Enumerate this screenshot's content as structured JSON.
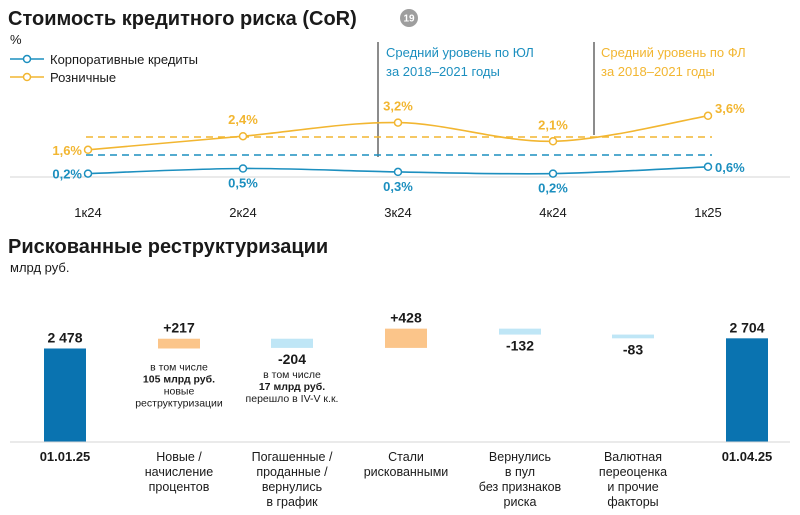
{
  "colors": {
    "blue": "#1c8fbf",
    "yellow": "#f2b631",
    "dark_blue": "#0a73b0",
    "light_blue": "#bfe6f6",
    "light_orange": "#fbc58a",
    "badge_gray": "#9e9e9e"
  },
  "chart_data": [
    {
      "type": "line",
      "title": "Стоимость кредитного риска (CoR)",
      "badge": "19",
      "unit": "%",
      "categories": [
        "1к24",
        "2к24",
        "3к24",
        "4к24",
        "1к25"
      ],
      "series": [
        {
          "name": "Корпоративные кредиты",
          "color": "#1c8fbf",
          "values": [
            0.2,
            0.5,
            0.3,
            0.2,
            0.6
          ],
          "labels": [
            "0,2%",
            "0,5%",
            "0,3%",
            "0,2%",
            "0,6%"
          ]
        },
        {
          "name": "Розничные",
          "color": "#f2b631",
          "values": [
            1.6,
            2.4,
            3.2,
            2.1,
            3.6
          ],
          "labels": [
            "1,6%",
            "2,4%",
            "3,2%",
            "2,1%",
            "3,6%"
          ]
        }
      ],
      "reference_lines": [
        {
          "text_1": "Средний уровень по ЮЛ",
          "text_2": "за 2018–2021 годы",
          "color": "#1c8fbf"
        },
        {
          "text_1": "Средний уровень по ФЛ",
          "text_2": "за 2018–2021 годы",
          "color": "#f2b631"
        }
      ]
    },
    {
      "type": "waterfall",
      "title": "Рискованные реструктуризации",
      "unit": "млрд руб.",
      "steps": [
        {
          "kind": "total",
          "value": 2478,
          "label": "2 478",
          "category": [
            "01.01.25"
          ]
        },
        {
          "kind": "delta",
          "value": 217,
          "label": "+217",
          "category": [
            "Новые /",
            "начисление",
            "процентов"
          ],
          "note": [
            "в том числе",
            "105 млрд руб.",
            "новые",
            "реструктуризации"
          ]
        },
        {
          "kind": "delta",
          "value": -204,
          "label": "-204",
          "category": [
            "Погашенные /",
            "проданные /",
            "вернулись",
            "в график"
          ],
          "note": [
            "в том числе",
            "17 млрд руб.",
            "перешло в IV-V к.к."
          ]
        },
        {
          "kind": "delta",
          "value": 428,
          "label": "+428",
          "category": [
            "Стали",
            "рискованными"
          ]
        },
        {
          "kind": "delta",
          "value": -132,
          "label": "-132",
          "category": [
            "Вернулись",
            "в пул",
            "без признаков",
            "риска"
          ]
        },
        {
          "kind": "delta",
          "value": -83,
          "label": "-83",
          "category": [
            "Валютная",
            "переоценка",
            "и прочие",
            "факторы"
          ]
        },
        {
          "kind": "total",
          "value": 2704,
          "label": "2 704",
          "category": [
            "01.04.25"
          ]
        }
      ]
    }
  ]
}
